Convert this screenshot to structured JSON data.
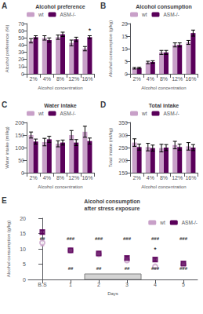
{
  "chart_data": [
    {
      "type": "bar",
      "panel_label": "A",
      "title": "Alcohol preference",
      "x_label": "Alcohol concentration",
      "y_label": "Alcohol preference (%)",
      "categories": [
        "2%",
        "4%",
        "8%",
        "12%",
        "16%"
      ],
      "series": [
        {
          "name": "wt",
          "color": "#c8a0c8",
          "values": [
            46,
            50,
            51,
            43,
            35
          ],
          "errors": [
            3,
            3,
            3,
            4,
            3
          ]
        },
        {
          "name": "ASM-/-",
          "color": "#5a005a",
          "values": [
            51,
            47,
            55,
            48,
            51
          ],
          "errors": [
            2,
            3,
            3,
            3,
            2
          ]
        }
      ],
      "ylim": [
        0,
        70
      ],
      "yticks": [
        0,
        10,
        20,
        30,
        40,
        50,
        60,
        70
      ],
      "grid": false,
      "legend": "upper left",
      "annotations": [
        {
          "text": "*",
          "category": "16%",
          "series": "ASM-/-",
          "y": 54.75
        }
      ]
    },
    {
      "type": "bar",
      "panel_label": "B",
      "title": "Alcohol consumption",
      "x_label": "Alcohol concentration",
      "y_label": "Alcohol consumption (g/kg)",
      "categories": [
        "2%",
        "4%",
        "8%",
        "12%",
        "16%"
      ],
      "series": [
        {
          "name": "wt",
          "color": "#c8a0c8",
          "values": [
            2.2,
            4.5,
            8.5,
            11.5,
            12.5
          ],
          "errors": [
            0.3,
            0.5,
            0.8,
            0.8,
            0.8
          ]
        },
        {
          "name": "ASM-/-",
          "color": "#5a005a",
          "values": [
            2.3,
            4.7,
            8.5,
            11.5,
            16.2
          ],
          "errors": [
            0.3,
            0.5,
            0.8,
            0.8,
            1.2
          ]
        }
      ],
      "ylim": [
        0,
        20
      ],
      "yticks": [
        0,
        5,
        10,
        15,
        20
      ],
      "grid": false,
      "legend": "upper left"
    },
    {
      "type": "bar",
      "panel_label": "C",
      "title": "Water intake",
      "x_label": "Alcohol concentration",
      "y_label": "Water intake (ml/kg)",
      "categories": [
        "2%",
        "4%",
        "8%",
        "12%",
        "16%"
      ],
      "series": [
        {
          "name": "wt",
          "color": "#c8a0c8",
          "values": [
            150,
            122,
            115,
            150,
            163
          ],
          "errors": [
            12,
            15,
            12,
            18,
            22
          ]
        },
        {
          "name": "ASM-/-",
          "color": "#5a005a",
          "values": [
            124,
            133,
            120,
            120,
            126
          ],
          "errors": [
            10,
            12,
            10,
            12,
            12
          ]
        }
      ],
      "ylim": [
        0,
        200
      ],
      "yticks": [
        0,
        50,
        100,
        150,
        200
      ],
      "grid": false,
      "legend": "upper left"
    },
    {
      "type": "bar",
      "panel_label": "D",
      "title": "Total intake",
      "x_label": "Alcohol concentration",
      "y_label": "Total intake (ml/kg)",
      "categories": [
        "2%",
        "4%",
        "8%",
        "12%",
        "16%"
      ],
      "series": [
        {
          "name": "wt",
          "color": "#c8a0c8",
          "values": [
            270,
            252,
            248,
            260,
            255
          ],
          "errors": [
            15,
            15,
            15,
            15,
            15
          ]
        },
        {
          "name": "ASM-/-",
          "color": "#5a005a",
          "values": [
            252,
            248,
            250,
            252,
            250
          ],
          "errors": [
            12,
            12,
            12,
            12,
            12
          ]
        }
      ],
      "ylim": [
        150,
        350
      ],
      "yticks": [
        150,
        200,
        250,
        300,
        350
      ],
      "grid": false,
      "legend": "upper left"
    },
    {
      "type": "scatter",
      "panel_label": "E",
      "title": "Alcohol consumption\nafter stress exposure",
      "x_label": "Days",
      "y_label": "Alcohol consumption (g/kg)",
      "x": [
        0,
        1,
        2,
        3,
        4,
        5
      ],
      "xlim": [
        -0.5,
        5.5
      ],
      "xticks": [
        {
          "value": 0,
          "label": "B.S"
        },
        1,
        2,
        3,
        4,
        5
      ],
      "series": [
        {
          "name": "wt",
          "color": "#c8a0c8",
          "marker": "open_circle",
          "values": [
            12.0,
            9.5,
            8.3,
            6.3,
            4.2,
            4.8
          ],
          "errors": [
            1.0,
            0.5,
            0.5,
            0.5,
            0.5,
            0.5
          ]
        },
        {
          "name": "ASM-/-",
          "color": "#5a005a",
          "marker": "square",
          "values": [
            15.5,
            9.5,
            8.5,
            7.0,
            6.5,
            5.2
          ],
          "errors": [
            0.5,
            0.5,
            0.5,
            0.5,
            0.5,
            0.5
          ]
        }
      ],
      "ylim": [
        0,
        20
      ],
      "yticks": [
        0,
        5,
        10,
        15,
        20
      ],
      "grid": false,
      "legend": "upper right",
      "shaded_region": {
        "x": [
          1.5,
          3.5
        ],
        "y": [
          0,
          1.8
        ]
      },
      "annotations": [
        {
          "text": "##",
          "x": 0,
          "y": 12.5
        },
        {
          "text": "###",
          "x": 1,
          "y": 12.5
        },
        {
          "text": "###",
          "x": 2,
          "y": 12.5
        },
        {
          "text": "###",
          "x": 3,
          "y": 12.5
        },
        {
          "text": "###",
          "x": 4,
          "y": 12.5
        },
        {
          "text": "###",
          "x": 5,
          "y": 12.5
        },
        {
          "text": "##",
          "x": 1,
          "y": 2.8
        },
        {
          "text": "##",
          "x": 2,
          "y": 2.8
        },
        {
          "text": "##",
          "x": 3,
          "y": 2.8
        },
        {
          "text": "###",
          "x": 4,
          "y": 2.8
        },
        {
          "text": "###",
          "x": 5,
          "y": 2.8
        },
        {
          "text": "*",
          "x": 4,
          "y": 8.5
        }
      ]
    }
  ]
}
